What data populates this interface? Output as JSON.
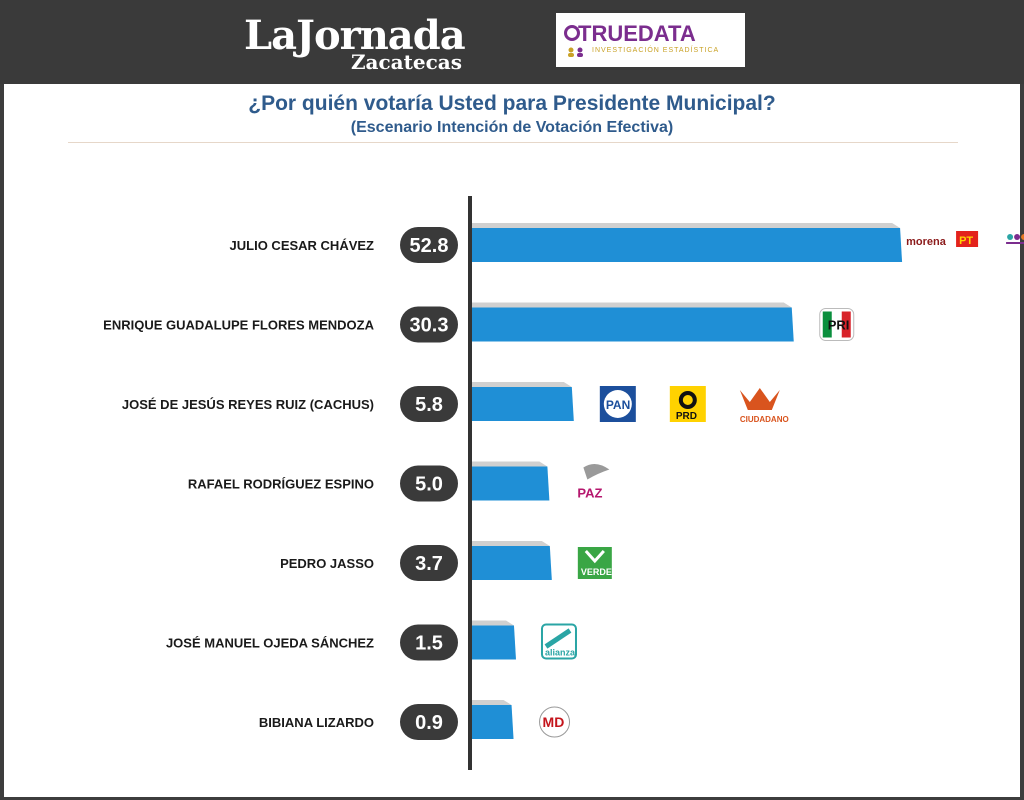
{
  "header": {
    "logo_main": "LaJornada",
    "logo_sub": "Zacatecas",
    "pollster_name": "TRUEDATA",
    "pollster_tagline": "INVESTIGACIÓN ESTADÍSTICA"
  },
  "colors": {
    "header_bg": "#3a3a3a",
    "bar": "#1f8fd6",
    "bar_shadow": "#d0d0d0",
    "pill": "#3a3a3a",
    "axis": "#333333",
    "title": "#2f5b8c"
  },
  "chart_data": {
    "type": "bar",
    "orientation": "horizontal",
    "title": "¿Por quién votaría Usted para Presidente Municipal?",
    "subtitle": "(Escenario Intención de Votación Efectiva)",
    "xlabel": "",
    "ylabel": "",
    "grid": false,
    "legend": "none",
    "categories": [
      "JULIO CESAR CHÁVEZ",
      "ENRIQUE GUADALUPE FLORES MENDOZA",
      "JOSÉ DE JESÚS REYES RUIZ (CACHUS)",
      "RAFAEL RODRÍGUEZ ESPINO",
      "PEDRO JASSO",
      "JOSÉ MANUEL OJEDA SÁNCHEZ",
      "BIBIANA LIZARDO"
    ],
    "values": [
      52.8,
      30.3,
      5.8,
      5.0,
      3.7,
      1.5,
      0.9
    ],
    "value_labels": [
      "52.8",
      "30.3",
      "5.8",
      "5.0",
      "3.7",
      "1.5",
      "0.9"
    ],
    "bar_lengths": [
      52.8,
      39.5,
      12.5,
      9.5,
      9.8,
      5.4,
      5.1
    ],
    "xlim": [
      0,
      55
    ],
    "parties": [
      [
        "morena",
        "PT",
        "NA"
      ],
      [
        "PRI"
      ],
      [
        "PAN",
        "PRD",
        "MC"
      ],
      [
        "PAZ"
      ],
      [
        "VERDE"
      ],
      [
        "alianza"
      ],
      [
        "MD"
      ]
    ],
    "party_icons": [
      [
        "morena-logo",
        "pt-logo",
        "na-logo"
      ],
      [
        "pri-logo"
      ],
      [
        "pan-logo",
        "prd-logo",
        "movimiento-ciudadano-logo"
      ],
      [
        "paz-logo"
      ],
      [
        "verde-logo"
      ],
      [
        "nueva-alianza-logo"
      ],
      [
        "md-logo"
      ]
    ]
  }
}
